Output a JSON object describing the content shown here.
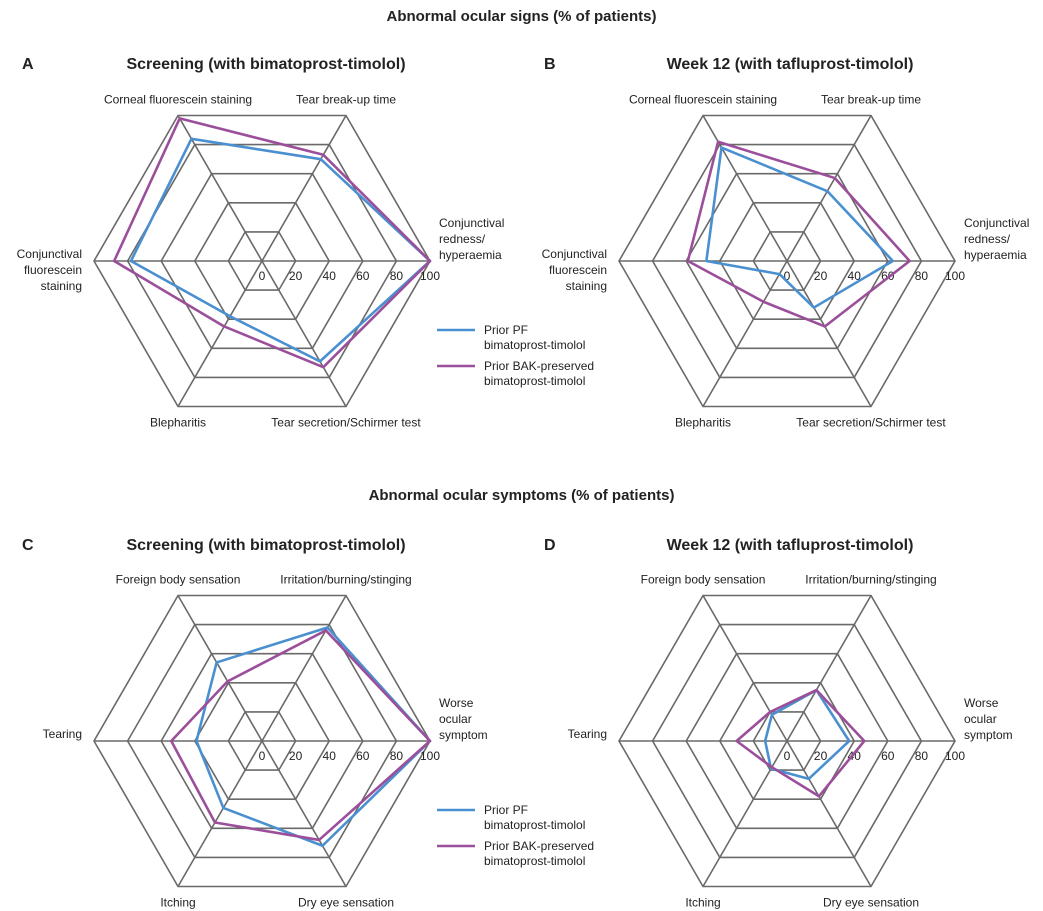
{
  "headings": {
    "signs": "Abnormal ocular signs (% of patients)",
    "symptoms": "Abnormal ocular symptoms (% of patients)"
  },
  "colors": {
    "pf": "#4a90d0",
    "bak": "#9b4f9b",
    "grid": "#6a6a6a"
  },
  "legend": {
    "pf": [
      "Prior PF",
      "bimatoprost-timolol"
    ],
    "bak": [
      "Prior BAK-preserved",
      "bimatoprost-timolol"
    ]
  },
  "chart_data": [
    {
      "type": "radar",
      "panel": "A",
      "title": "Screening (with bimatoprost-timolol)",
      "axes": [
        [
          "Conjunctival",
          "redness/",
          "hyperaemia"
        ],
        [
          "Tear break-up time"
        ],
        [
          "Corneal fluorescein staining"
        ],
        [
          "Conjunctival",
          "fluorescein",
          "staining"
        ],
        [
          "Blepharitis"
        ],
        [
          "Tear secretion/Schirmer test"
        ]
      ],
      "ticks": [
        0,
        20,
        40,
        60,
        80,
        100
      ],
      "rlim": [
        0,
        100
      ],
      "series": [
        {
          "name": "Prior PF bimatoprost-timolol",
          "values": [
            100,
            70,
            84,
            78,
            38,
            69
          ]
        },
        {
          "name": "Prior BAK-preserved bimatoprost-timolol",
          "values": [
            100,
            73,
            98,
            88,
            45,
            73
          ]
        }
      ]
    },
    {
      "type": "radar",
      "panel": "B",
      "title": "Week 12 (with tafluprost-timolol)",
      "axes": [
        [
          "Conjunctival",
          "redness/",
          "hyperaemia"
        ],
        [
          "Tear break-up time"
        ],
        [
          "Corneal fluorescein staining"
        ],
        [
          "Conjunctival",
          "fluorescein",
          "staining"
        ],
        [
          "Blepharitis"
        ],
        [
          "Tear secretion/Schirmer test"
        ]
      ],
      "ticks": [
        0,
        20,
        40,
        60,
        80,
        100
      ],
      "rlim": [
        0,
        100
      ],
      "series": [
        {
          "name": "Prior PF bimatoprost-timolol",
          "values": [
            63,
            48,
            78,
            48,
            9,
            32
          ]
        },
        {
          "name": "Prior BAK-preserved bimatoprost-timolol",
          "values": [
            73,
            57,
            82,
            59,
            28,
            45
          ]
        }
      ]
    },
    {
      "type": "radar",
      "panel": "C",
      "title": "Screening (with bimatoprost-timolol)",
      "axes": [
        [
          "Worse",
          "ocular",
          "symptom"
        ],
        [
          "Irritation/burning/stinging"
        ],
        [
          "Foreign body sensation"
        ],
        [
          "Tearing"
        ],
        [
          "Itching"
        ],
        [
          "Dry eye sensation"
        ]
      ],
      "ticks": [
        0,
        20,
        40,
        60,
        80,
        100
      ],
      "rlim": [
        0,
        100
      ],
      "series": [
        {
          "name": "Prior PF bimatoprost-timolol",
          "values": [
            100,
            78,
            54,
            39,
            46,
            72
          ]
        },
        {
          "name": "Prior BAK-preserved bimatoprost-timolol",
          "values": [
            100,
            76,
            41,
            54,
            56,
            68
          ]
        }
      ]
    },
    {
      "type": "radar",
      "panel": "D",
      "title": "Week 12 (with tafluprost-timolol)",
      "axes": [
        [
          "Worse",
          "ocular",
          "symptom"
        ],
        [
          "Irritation/burning/stinging"
        ],
        [
          "Foreign body sensation"
        ],
        [
          "Tearing"
        ],
        [
          "Itching"
        ],
        [
          "Dry eye sensation"
        ]
      ],
      "ticks": [
        0,
        20,
        40,
        60,
        80,
        100
      ],
      "rlim": [
        0,
        100
      ],
      "series": [
        {
          "name": "Prior PF bimatoprost-timolol",
          "values": [
            37,
            35,
            18,
            13,
            19,
            26
          ]
        },
        {
          "name": "Prior BAK-preserved bimatoprost-timolol",
          "values": [
            46,
            35,
            20,
            30,
            18,
            38
          ]
        }
      ]
    }
  ]
}
